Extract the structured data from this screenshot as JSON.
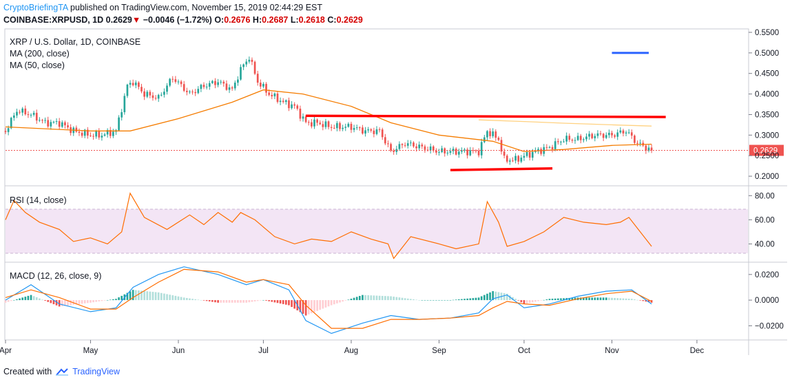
{
  "header": {
    "publisher": "CryptoBriefingTA",
    "published_text": "published on TradingView.com, November 15, 2019 02:44:29 EST",
    "symbol": "COINBASE:XRPUSD, 1D",
    "last": "0.2629",
    "down_arrow": "▼",
    "change": "−0.0046 (−1.72%)",
    "o_label": "O:",
    "o_value": "0.2676",
    "h_label": "H:",
    "h_value": "0.2687",
    "l_label": "L:",
    "l_value": "0.2618",
    "c_label": "C:",
    "c_value": "0.2629"
  },
  "legend": {
    "title": "XRP / U.S. Dollar, 1D, COINBASE",
    "ma200": "MA (200, close)",
    "ma50": "MA (50, close)",
    "rsi": "RSI (14, close)",
    "macd": "MACD (12, 26, close, 9)"
  },
  "footer": {
    "created_with": "Created with",
    "brand": "TradingView"
  },
  "colors": {
    "up": "#26a69a",
    "down": "#ef5350",
    "ma50": "#f57c00",
    "ma200": "#ffd180",
    "macd": "#2196f3",
    "signal": "#ff6d00",
    "rsi": "#ff6d00",
    "rsi_band": "#f3e5f5",
    "trend_red": "#ff0000",
    "blue_line": "#2962ff",
    "last_price": "#ef5350"
  },
  "chart_data": [
    {
      "type": "candlestick",
      "title": "XRP / U.S. Dollar, 1D, COINBASE",
      "x_range": [
        "2019-04-01",
        "2019-12-19"
      ],
      "x_ticks": [
        "Apr",
        "May",
        "Jun",
        "Jul",
        "Aug",
        "Sep",
        "Oct",
        "Nov",
        "Dec"
      ],
      "x_tick_dates": [
        "2019-04-01",
        "2019-05-01",
        "2019-06-01",
        "2019-07-01",
        "2019-08-01",
        "2019-09-01",
        "2019-10-01",
        "2019-11-01",
        "2019-12-01"
      ],
      "ylim": [
        0.18,
        0.555
      ],
      "y_ticks": [
        0.55,
        0.5,
        0.45,
        0.4,
        0.35,
        0.3,
        0.25,
        0.2
      ],
      "y_tick_labels": [
        "0.5500",
        "0.5000",
        "0.4500",
        "0.4000",
        "0.3500",
        "0.3000",
        "0.2500",
        "0.2000"
      ],
      "last_price": 0.2629,
      "last_price_label": "0.2629",
      "close_series": {
        "dates": [
          "2019-04-01",
          "2019-04-05",
          "2019-04-10",
          "2019-04-15",
          "2019-04-20",
          "2019-04-25",
          "2019-05-01",
          "2019-05-05",
          "2019-05-10",
          "2019-05-14",
          "2019-05-16",
          "2019-05-20",
          "2019-05-25",
          "2019-05-30",
          "2019-06-05",
          "2019-06-10",
          "2019-06-15",
          "2019-06-20",
          "2019-06-23",
          "2019-06-26",
          "2019-06-29",
          "2019-07-03",
          "2019-07-08",
          "2019-07-12",
          "2019-07-16",
          "2019-07-20",
          "2019-07-25",
          "2019-08-01",
          "2019-08-06",
          "2019-08-11",
          "2019-08-15",
          "2019-08-20",
          "2019-08-26",
          "2019-09-01",
          "2019-09-08",
          "2019-09-15",
          "2019-09-18",
          "2019-09-22",
          "2019-09-24",
          "2019-09-28",
          "2019-10-05",
          "2019-10-10",
          "2019-10-15",
          "2019-10-20",
          "2019-10-26",
          "2019-11-01",
          "2019-11-06",
          "2019-11-10",
          "2019-11-15"
        ],
        "values": [
          0.31,
          0.36,
          0.35,
          0.33,
          0.33,
          0.31,
          0.3,
          0.3,
          0.31,
          0.42,
          0.43,
          0.4,
          0.39,
          0.44,
          0.4,
          0.42,
          0.43,
          0.41,
          0.46,
          0.49,
          0.43,
          0.4,
          0.38,
          0.37,
          0.33,
          0.33,
          0.32,
          0.32,
          0.31,
          0.31,
          0.26,
          0.28,
          0.27,
          0.26,
          0.26,
          0.26,
          0.31,
          0.29,
          0.24,
          0.24,
          0.26,
          0.27,
          0.29,
          0.29,
          0.3,
          0.3,
          0.31,
          0.28,
          0.2629
        ]
      },
      "ma50": {
        "dates": [
          "2019-04-01",
          "2019-05-01",
          "2019-05-15",
          "2019-06-01",
          "2019-06-20",
          "2019-07-01",
          "2019-07-15",
          "2019-08-01",
          "2019-08-15",
          "2019-09-01",
          "2019-09-20",
          "2019-10-01",
          "2019-10-15",
          "2019-11-01",
          "2019-11-15"
        ],
        "values": [
          0.32,
          0.31,
          0.31,
          0.34,
          0.38,
          0.41,
          0.4,
          0.37,
          0.33,
          0.3,
          0.285,
          0.26,
          0.265,
          0.275,
          0.278
        ]
      },
      "ma200": {
        "dates": [
          "2019-09-15",
          "2019-10-01",
          "2019-10-15",
          "2019-11-01",
          "2019-11-15"
        ],
        "values": [
          0.337,
          0.333,
          0.329,
          0.325,
          0.322
        ]
      },
      "annotations": [
        {
          "type": "resistance",
          "from": "2019-07-16",
          "to": "2019-11-20",
          "y_start": 0.347,
          "y_end": 0.344
        },
        {
          "type": "support",
          "from": "2019-09-05",
          "to": "2019-10-11",
          "y_start": 0.215,
          "y_end": 0.219
        },
        {
          "type": "marker",
          "from": "2019-11-01",
          "to": "2019-11-14",
          "y_start": 0.5,
          "y_end": 0.5
        }
      ]
    },
    {
      "type": "line",
      "title": "RSI (14, close)",
      "ylim": [
        26,
        87
      ],
      "y_ticks": [
        80,
        60,
        40
      ],
      "y_tick_labels": [
        "80.00",
        "60.00",
        "40.00"
      ],
      "band": [
        30,
        70
      ],
      "dates": [
        "2019-04-01",
        "2019-04-04",
        "2019-04-08",
        "2019-04-13",
        "2019-04-20",
        "2019-04-25",
        "2019-05-01",
        "2019-05-07",
        "2019-05-12",
        "2019-05-15",
        "2019-05-20",
        "2019-05-28",
        "2019-06-05",
        "2019-06-10",
        "2019-06-15",
        "2019-06-20",
        "2019-06-23",
        "2019-06-28",
        "2019-07-05",
        "2019-07-12",
        "2019-07-18",
        "2019-07-25",
        "2019-08-01",
        "2019-08-08",
        "2019-08-14",
        "2019-08-16",
        "2019-08-22",
        "2019-09-01",
        "2019-09-07",
        "2019-09-15",
        "2019-09-18",
        "2019-09-22",
        "2019-09-25",
        "2019-10-01",
        "2019-10-08",
        "2019-10-15",
        "2019-10-22",
        "2019-10-30",
        "2019-11-04",
        "2019-11-07",
        "2019-11-15"
      ],
      "values": [
        60,
        76,
        66,
        58,
        52,
        42,
        45,
        40,
        50,
        82,
        62,
        52,
        64,
        56,
        66,
        58,
        66,
        60,
        46,
        40,
        44,
        42,
        50,
        44,
        40,
        28,
        46,
        40,
        36,
        40,
        75,
        58,
        38,
        42,
        50,
        62,
        58,
        56,
        58,
        62,
        38
      ]
    },
    {
      "type": "line",
      "title": "MACD (12, 26, close, 9)",
      "ylim": [
        -0.03,
        0.0285
      ],
      "y_ticks": [
        0.02,
        0.0,
        -0.02
      ],
      "y_tick_labels": [
        "0.0200",
        "0.0000",
        "−0.0200"
      ],
      "dates": [
        "2019-04-01",
        "2019-04-10",
        "2019-04-20",
        "2019-05-01",
        "2019-05-10",
        "2019-05-16",
        "2019-05-25",
        "2019-06-03",
        "2019-06-15",
        "2019-06-25",
        "2019-07-01",
        "2019-07-10",
        "2019-07-16",
        "2019-07-25",
        "2019-08-05",
        "2019-08-15",
        "2019-08-25",
        "2019-09-05",
        "2019-09-15",
        "2019-09-20",
        "2019-09-25",
        "2019-10-01",
        "2019-10-10",
        "2019-10-20",
        "2019-10-30",
        "2019-11-08",
        "2019-11-15"
      ],
      "series": [
        {
          "name": "MACD",
          "values": [
            0.0,
            0.012,
            -0.003,
            -0.009,
            -0.006,
            0.01,
            0.02,
            0.026,
            0.02,
            0.012,
            0.016,
            0.008,
            -0.016,
            -0.026,
            -0.018,
            -0.012,
            -0.015,
            -0.014,
            -0.01,
            0.001,
            0.004,
            -0.006,
            -0.003,
            0.003,
            0.007,
            0.008,
            -0.003
          ]
        },
        {
          "name": "Signal",
          "values": [
            0.002,
            0.008,
            0.002,
            -0.007,
            -0.007,
            0.002,
            0.014,
            0.024,
            0.022,
            0.014,
            0.016,
            0.012,
            -0.004,
            -0.022,
            -0.022,
            -0.015,
            -0.015,
            -0.014,
            -0.012,
            -0.006,
            -0.001,
            -0.003,
            -0.004,
            0.001,
            0.005,
            0.007,
            -0.001
          ]
        },
        {
          "name": "Histogram",
          "values": [
            -0.002,
            0.004,
            -0.005,
            -0.002,
            0.001,
            0.008,
            0.006,
            0.002,
            -0.002,
            -0.002,
            0.0,
            -0.004,
            -0.012,
            -0.004,
            0.004,
            0.003,
            0.0,
            0.0,
            0.002,
            0.007,
            0.005,
            -0.003,
            0.001,
            0.002,
            0.002,
            0.001,
            -0.002
          ]
        }
      ],
      "x_ticks": [
        "Apr",
        "May",
        "Jun",
        "Jul",
        "Aug",
        "Sep",
        "Oct",
        "Nov",
        "Dec"
      ]
    }
  ]
}
